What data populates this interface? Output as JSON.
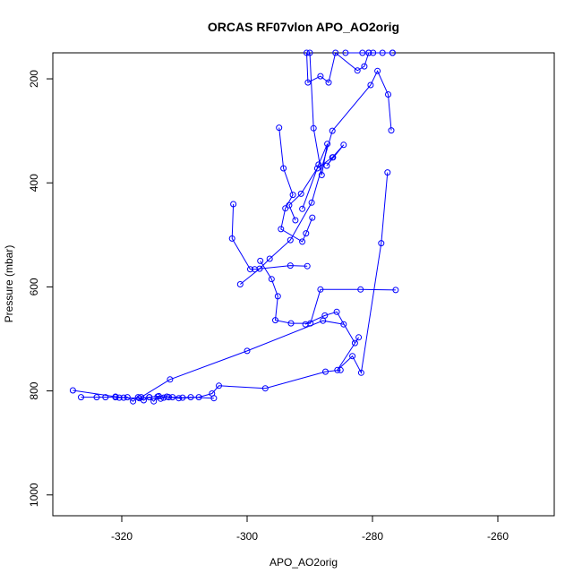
{
  "chart_data": {
    "type": "line",
    "title": "ORCAS RF07vlon APO_AO2orig",
    "xlabel": "APO_AO2orig",
    "ylabel": "Pressure (mbar)",
    "xlim": [
      -331,
      -251
    ],
    "ylim": [
      1040,
      150
    ],
    "y_reversed": true,
    "grid": false,
    "legend": "none",
    "xticks": [
      -320,
      -300,
      -280,
      -260
    ],
    "yticks": [
      200,
      400,
      600,
      800,
      1000
    ],
    "xtick_labels": [
      "-320",
      "-300",
      "-280",
      "-260"
    ],
    "ytick_labels": [
      "200",
      "400",
      "600",
      "800",
      "1000"
    ],
    "color": "#0000ff",
    "series": [
      {
        "x": [
          -276.8,
          -279.9,
          -280.6,
          -281.6,
          -284.3,
          -278.4,
          -276.8
        ],
        "y": [
          150,
          150,
          150,
          150,
          150,
          150,
          150
        ]
      },
      {
        "x": [
          -280.6,
          -281.3,
          -282.4,
          -285.9,
          -287.0,
          -288.3,
          -290.3,
          -290.5,
          -290.0,
          -289.4,
          -288.1,
          -287.2,
          -288.6,
          -291.2
        ],
        "y": [
          150,
          176,
          184,
          150,
          207,
          195,
          207,
          150,
          150,
          295,
          385,
          325,
          365,
          450
        ]
      },
      {
        "x": [
          -292.3,
          -293.3,
          -291.4,
          -288.8,
          -286.4,
          -284.6,
          -287.3,
          -286.3
        ],
        "y": [
          472,
          443,
          421,
          372,
          351,
          327,
          367,
          351
        ]
      },
      {
        "x": [
          -294.9,
          -294.2,
          -292.7,
          -293.9,
          -294.6,
          -291.2,
          -290.6,
          -289.6
        ],
        "y": [
          294,
          372,
          423,
          449,
          489,
          513,
          497,
          467
        ]
      },
      {
        "x": [
          -302.2,
          -302.4,
          -299.5,
          -298.8,
          -293.1,
          -290.4
        ],
        "y": [
          441,
          507,
          566,
          566,
          559,
          560
        ]
      },
      {
        "x": [
          -297.9,
          -296.1,
          -295.1,
          -295.5,
          -293.0,
          -289.9,
          -288.3,
          -281.9,
          -276.3
        ],
        "y": [
          550,
          585,
          618,
          664,
          670,
          670,
          605,
          605,
          606
        ]
      },
      {
        "x": [
          -290.7,
          -287.6,
          -285.7,
          -282.8,
          -282.2,
          -285.6,
          -283.2,
          -281.8,
          -278.6,
          -277.6
        ],
        "y": [
          672,
          655,
          648,
          708,
          697,
          760,
          733,
          765,
          516,
          380
        ]
      },
      {
        "x": [
          -277.0,
          -277.5,
          -279.2,
          -280.3,
          -286.4,
          -289.7,
          -293.1,
          -296.4,
          -298.0,
          -301.1
        ],
        "y": [
          299,
          230,
          185,
          212,
          300,
          438,
          510,
          546,
          565,
          595
        ]
      },
      {
        "x": [
          -327.8,
          -321.0,
          -319.7,
          -317.2,
          -315.6,
          -314.1,
          -312.5,
          -310.9,
          -307.7,
          -305.6,
          -304.5,
          -297.1,
          -287.5,
          -285.1
        ],
        "y": [
          799,
          811,
          813,
          814,
          812,
          810,
          812,
          814,
          812,
          805,
          790,
          795,
          763,
          760
        ]
      },
      {
        "x": [
          -326.5,
          -324.0,
          -322.6,
          -321.0,
          -320.4,
          -319.1,
          -318.2,
          -317.4,
          -316.5,
          -315.6,
          -314.9,
          -314.3,
          -313.8,
          -313.3,
          -312.8,
          -311.9,
          -310.3,
          -309.0,
          -305.3
        ],
        "y": [
          812,
          812,
          812,
          812,
          813,
          812,
          820,
          812,
          818,
          812,
          820,
          811,
          815,
          813,
          811,
          812,
          813,
          812,
          814
        ]
      },
      {
        "x": [
          -316.9,
          -312.3,
          -300.0,
          -287.9,
          -284.6
        ],
        "y": [
          812,
          778,
          723,
          665,
          672
        ]
      }
    ]
  }
}
